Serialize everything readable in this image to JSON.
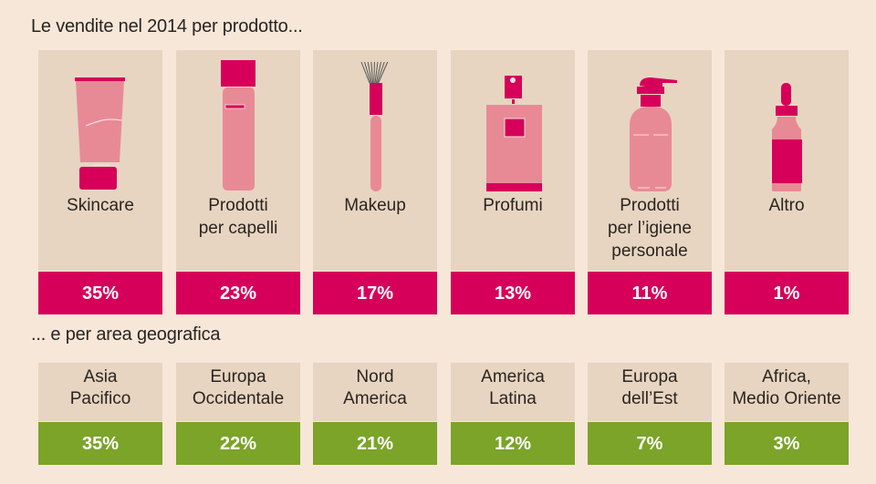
{
  "chart_data": {
    "type": "table",
    "colors": {
      "background": "#f6e7d9",
      "card": "#e7d5c1",
      "product_accent": "#d6005a",
      "product_icon": "#e88a96",
      "geo_accent": "#7ba428"
    },
    "products": {
      "title": "Le vendite nel 2014 per prodotto...",
      "items": [
        {
          "label": [
            "Skincare"
          ],
          "value": "35%",
          "icon": "cream-tube-icon"
        },
        {
          "label": [
            "Prodotti",
            "per capelli"
          ],
          "value": "23%",
          "icon": "hair-spray-icon"
        },
        {
          "label": [
            "Makeup"
          ],
          "value": "17%",
          "icon": "makeup-brush-icon"
        },
        {
          "label": [
            "Profumi"
          ],
          "value": "13%",
          "icon": "perfume-bottle-icon"
        },
        {
          "label": [
            "Prodotti",
            "per l’igiene",
            "personale"
          ],
          "value": "11%",
          "icon": "soap-dispenser-icon"
        },
        {
          "label": [
            "Altro"
          ],
          "value": "1%",
          "icon": "dropper-bottle-icon"
        }
      ]
    },
    "regions": {
      "title": "... e per area geografica",
      "items": [
        {
          "label": [
            "Asia",
            "Pacifico"
          ],
          "value": "35%"
        },
        {
          "label": [
            "Europa",
            "Occidentale"
          ],
          "value": "22%"
        },
        {
          "label": [
            "Nord",
            "America"
          ],
          "value": "21%"
        },
        {
          "label": [
            "America",
            "Latina"
          ],
          "value": "12%"
        },
        {
          "label": [
            "Europa",
            "dell’Est"
          ],
          "value": "7%"
        },
        {
          "label": [
            "Africa,",
            "Medio Oriente"
          ],
          "value": "3%"
        }
      ]
    }
  }
}
